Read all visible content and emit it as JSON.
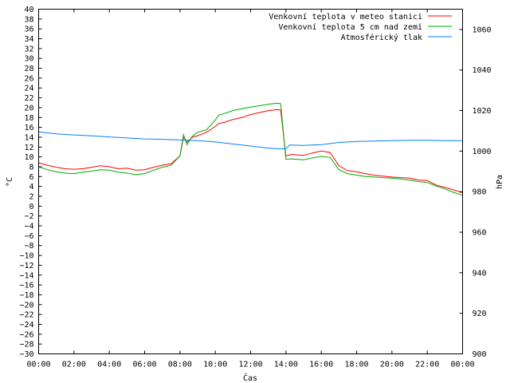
{
  "chart_data": {
    "type": "line",
    "xlabel": "Čas",
    "ylabel": "°C",
    "y2label": "hPa",
    "xlim": [
      0,
      24
    ],
    "x_tick_labels": [
      "00:00",
      "02:00",
      "04:00",
      "06:00",
      "08:00",
      "10:00",
      "12:00",
      "14:00",
      "16:00",
      "18:00",
      "20:00",
      "22:00",
      "00:00"
    ],
    "ylim": [
      -30,
      40
    ],
    "y_ticks": [
      40,
      38,
      36,
      34,
      32,
      30,
      28,
      26,
      24,
      22,
      20,
      18,
      16,
      14,
      12,
      10,
      8,
      6,
      4,
      2,
      0,
      -2,
      -4,
      -6,
      -8,
      -10,
      -12,
      -14,
      -16,
      -18,
      -20,
      -22,
      -24,
      -26,
      -28,
      -30
    ],
    "y2lim": [
      900,
      1070
    ],
    "y2_ticks": [
      1060,
      1040,
      1020,
      1000,
      980,
      960,
      940,
      920,
      900
    ],
    "grid": false,
    "legend_position": "top-right",
    "series": [
      {
        "name": "Venkovní teplota v meteo stanici",
        "color": "#ff0000",
        "axis": "left",
        "x": [
          0,
          0.5,
          1,
          1.5,
          2,
          2.5,
          3,
          3.5,
          4,
          4.5,
          5,
          5.5,
          6,
          6.5,
          7,
          7.5,
          8,
          8.2,
          8.4,
          8.7,
          9,
          9.5,
          10,
          10.2,
          10.5,
          11,
          11.5,
          12,
          12.5,
          13,
          13.5,
          13.7,
          14,
          14.3,
          15,
          15.5,
          16,
          16.5,
          17,
          17.5,
          18,
          18.5,
          19,
          19.5,
          20,
          20.5,
          21,
          21.5,
          22,
          22.5,
          23,
          23.5,
          24
        ],
        "y": [
          8.8,
          8.3,
          7.9,
          7.6,
          7.5,
          7.6,
          7.9,
          8.2,
          8.0,
          7.6,
          7.7,
          7.3,
          7.4,
          7.9,
          8.3,
          8.6,
          10.2,
          14.0,
          13.0,
          14.0,
          14.3,
          15.0,
          16.2,
          16.8,
          17.0,
          17.6,
          18.0,
          18.6,
          19.0,
          19.4,
          19.6,
          19.5,
          10.2,
          10.5,
          10.3,
          10.8,
          11.2,
          10.9,
          8.2,
          7.2,
          7.0,
          6.6,
          6.3,
          6.1,
          5.9,
          5.8,
          5.7,
          5.3,
          5.2,
          4.3,
          3.8,
          3.3,
          2.7
        ]
      },
      {
        "name": "Venkovní teplota 5 cm nad zemí",
        "color": "#00aa00",
        "axis": "left",
        "x": [
          0,
          0.5,
          1,
          1.5,
          2,
          2.5,
          3,
          3.5,
          4,
          4.5,
          5,
          5.5,
          6,
          6.5,
          7,
          7.5,
          8,
          8.2,
          8.4,
          8.7,
          9,
          9.5,
          10,
          10.2,
          10.5,
          11,
          11.5,
          12,
          12.5,
          13,
          13.5,
          13.7,
          14,
          14.3,
          15,
          15.5,
          16,
          16.5,
          17,
          17.5,
          18,
          18.5,
          19,
          19.5,
          20,
          20.5,
          21,
          21.5,
          22,
          22.5,
          23,
          23.5,
          24
        ],
        "y": [
          8.0,
          7.4,
          7.0,
          6.7,
          6.6,
          6.9,
          7.1,
          7.4,
          7.3,
          6.9,
          6.7,
          6.4,
          6.6,
          7.3,
          7.9,
          8.3,
          10.2,
          14.5,
          12.5,
          14.2,
          15.0,
          15.5,
          17.5,
          18.5,
          18.8,
          19.4,
          19.8,
          20.1,
          20.4,
          20.7,
          20.9,
          20.8,
          9.5,
          9.6,
          9.4,
          9.8,
          10.1,
          9.9,
          7.4,
          6.6,
          6.3,
          6.0,
          5.9,
          5.8,
          5.7,
          5.5,
          5.3,
          5.0,
          4.8,
          4.1,
          3.5,
          2.8,
          2.2
        ]
      },
      {
        "name": "Atmosférický tlak",
        "color": "#0080ff",
        "axis": "right",
        "x": [
          0,
          1,
          2,
          3,
          4,
          5,
          6,
          7,
          8,
          9,
          10,
          11,
          12,
          13,
          13.7,
          14,
          14.2,
          15,
          16,
          17,
          18,
          19,
          20,
          21,
          22,
          23,
          24
        ],
        "y": [
          1009.5,
          1008.5,
          1008,
          1007.5,
          1007,
          1006.5,
          1006,
          1005.8,
          1005.5,
          1005.2,
          1004.5,
          1003.5,
          1002.5,
          1001.5,
          1001,
          1001.2,
          1003,
          1002.8,
          1003.2,
          1004.3,
          1004.7,
          1005,
          1005.2,
          1005.3,
          1005.3,
          1005.2,
          1005.1
        ]
      }
    ]
  }
}
